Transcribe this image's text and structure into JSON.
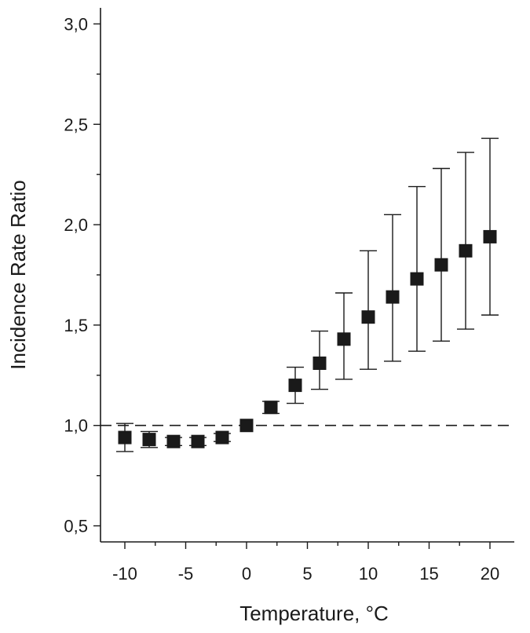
{
  "chart_data": {
    "type": "scatter",
    "title": "",
    "xlabel": "Temperature, °C",
    "ylabel": "Incidence Rate Ratio",
    "xlim": [
      -12,
      22
    ],
    "ylim": [
      0.42,
      3.08
    ],
    "xticks": [
      -10,
      -5,
      0,
      5,
      10,
      15,
      20
    ],
    "xtick_labels": [
      "-10",
      "-5",
      "0",
      "5",
      "10",
      "15",
      "20"
    ],
    "yticks": [
      0.5,
      1.0,
      1.5,
      2.0,
      2.5,
      3.0
    ],
    "ytick_labels": [
      "0,5",
      "1,0",
      "1,5",
      "2,0",
      "2,5",
      "3,0"
    ],
    "reference_line": 1.0,
    "grid": false,
    "legend": "none",
    "series": [
      {
        "marker": "square",
        "color": "#1a1a1a",
        "x": [
          -10,
          -8,
          -6,
          -4,
          -2,
          0,
          2,
          4,
          6,
          8,
          10,
          12,
          14,
          16,
          18,
          20
        ],
        "y": [
          0.94,
          0.93,
          0.92,
          0.92,
          0.94,
          1.0,
          1.09,
          1.2,
          1.31,
          1.43,
          1.54,
          1.64,
          1.73,
          1.8,
          1.87,
          1.94
        ],
        "lower": [
          0.87,
          0.89,
          0.9,
          0.9,
          0.92,
          1.0,
          1.06,
          1.11,
          1.18,
          1.23,
          1.28,
          1.32,
          1.37,
          1.42,
          1.48,
          1.55
        ],
        "upper": [
          1.01,
          0.97,
          0.94,
          0.94,
          0.96,
          1.0,
          1.12,
          1.29,
          1.47,
          1.66,
          1.87,
          2.05,
          2.19,
          2.28,
          2.36,
          2.43
        ]
      }
    ]
  }
}
